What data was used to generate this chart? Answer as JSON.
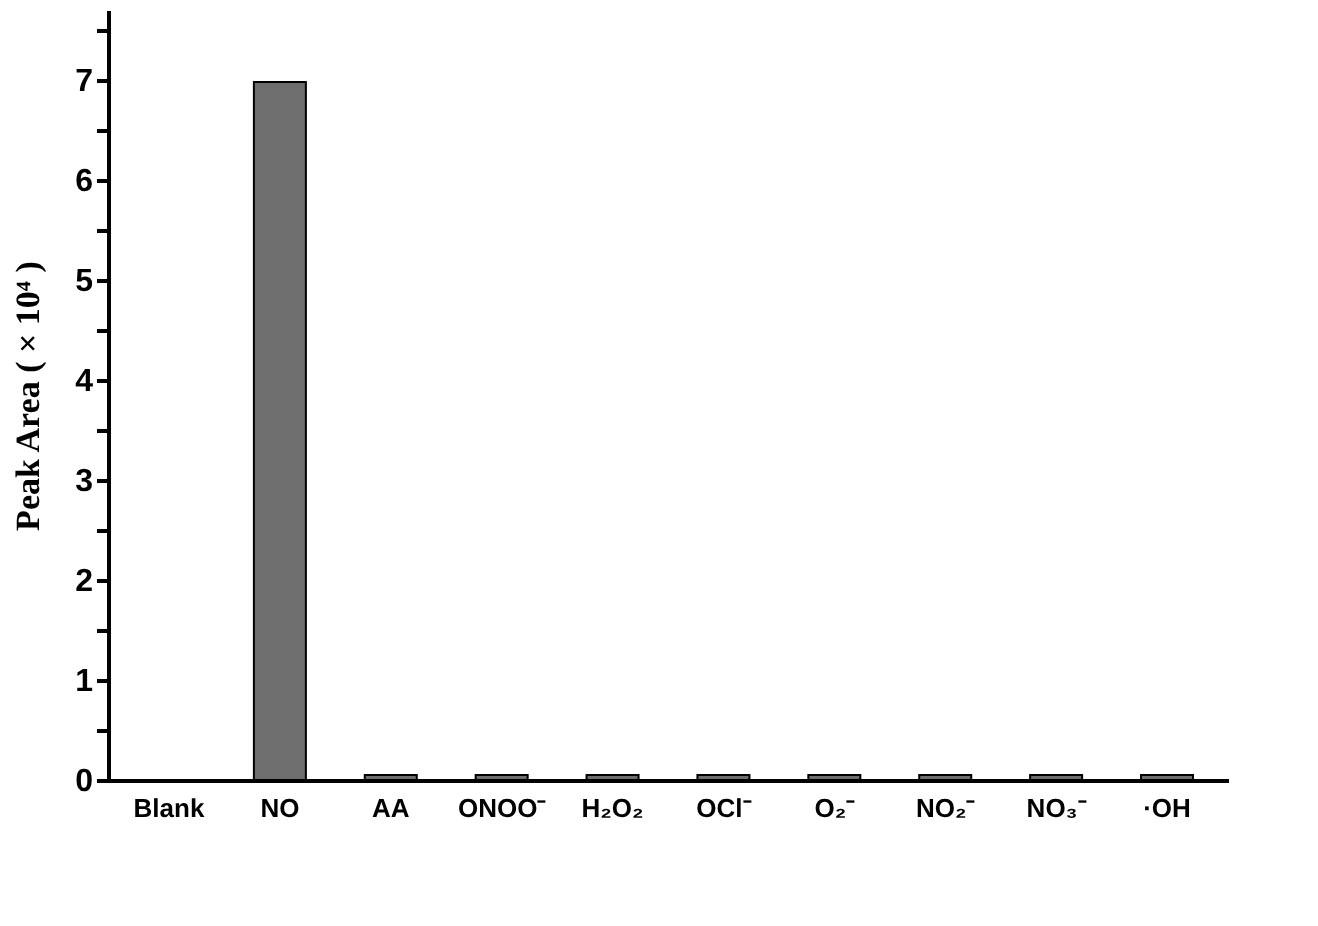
{
  "chart_data": {
    "type": "bar",
    "ylabel": "Peak Area ( × 10⁴ )",
    "categories": [
      "Blank",
      "NO",
      "AA",
      "ONOO⁻",
      "H₂O₂",
      "OCl⁻",
      "O₂⁻",
      "NO₂⁻",
      "NO₃⁻",
      "·OH"
    ],
    "values": [
      0,
      6.98,
      0.05,
      0.05,
      0.05,
      0.05,
      0.05,
      0.05,
      0.05,
      0.05
    ],
    "color": "#6e6e6e",
    "ylim": [
      0,
      7.7
    ],
    "yticks": [
      0,
      {
        "value": 0.5,
        "label": null
      },
      1,
      {
        "value": 1.5,
        "label": null
      },
      2,
      {
        "value": 2.5,
        "label": null
      },
      3,
      {
        "value": 3.5,
        "label": null
      },
      4,
      {
        "value": 4.5,
        "label": null
      },
      5,
      {
        "value": 5.5,
        "label": null
      },
      6,
      {
        "value": 6.5,
        "label": null
      },
      7,
      {
        "value": 7.5,
        "label": null
      }
    ],
    "grid": false
  }
}
